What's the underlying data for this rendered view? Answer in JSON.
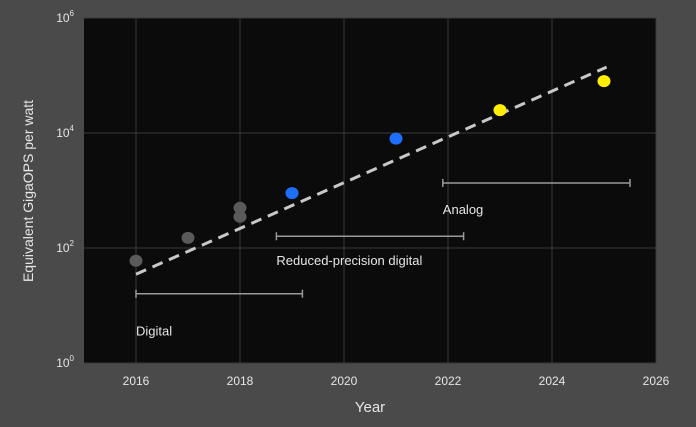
{
  "chart_data": {
    "type": "scatter",
    "title": "",
    "xlabel": "Year",
    "ylabel": "Equivalent GigaOPS per watt",
    "xlim": [
      2015,
      2026
    ],
    "ylim": [
      1,
      1000000
    ],
    "y_scale": "log",
    "x_ticks": [
      2016,
      2018,
      2020,
      2022,
      2024,
      2026
    ],
    "y_ticks": [
      {
        "value": 1,
        "base": "10",
        "exp": "0"
      },
      {
        "value": 100,
        "base": "10",
        "exp": "2"
      },
      {
        "value": 10000,
        "base": "10",
        "exp": "4"
      },
      {
        "value": 1000000,
        "base": "10",
        "exp": "6"
      }
    ],
    "grid": true,
    "colors": {
      "background": "#4a4a4a",
      "plot": "#0b0b0b",
      "grid": "#3a3a3a",
      "text": "#e6e6e6",
      "trend": "#c8c8c8",
      "range": "#9a9a9a"
    },
    "points": [
      {
        "x": 2016,
        "y": 60,
        "color": "#5a5a5a"
      },
      {
        "x": 2017,
        "y": 150,
        "color": "#5a5a5a"
      },
      {
        "x": 2018,
        "y": 350,
        "color": "#5a5a5a"
      },
      {
        "x": 2018,
        "y": 500,
        "color": "#5a5a5a"
      },
      {
        "x": 2019,
        "y": 900,
        "color": "#1f6fff"
      },
      {
        "x": 2021,
        "y": 8000,
        "color": "#1f6fff"
      },
      {
        "x": 2023,
        "y": 25000,
        "color": "#ffee00"
      },
      {
        "x": 2025,
        "y": 80000,
        "color": "#ffee00"
      }
    ],
    "trend_line": {
      "x": [
        2016,
        2025.05
      ],
      "y": [
        35,
        140000
      ],
      "style": "dashed"
    },
    "ranges": [
      {
        "label": "Digital",
        "x_start": 2016,
        "x_end": 2019.2,
        "y": 16,
        "label_y": 3.5
      },
      {
        "label": "Reduced-precision digital",
        "x_start": 2018.7,
        "x_end": 2022.3,
        "y": 160,
        "label_y": 60
      },
      {
        "label": "Analog",
        "x_start": 2021.9,
        "x_end": 2025.5,
        "y": 1350,
        "label_y": 460
      }
    ]
  }
}
